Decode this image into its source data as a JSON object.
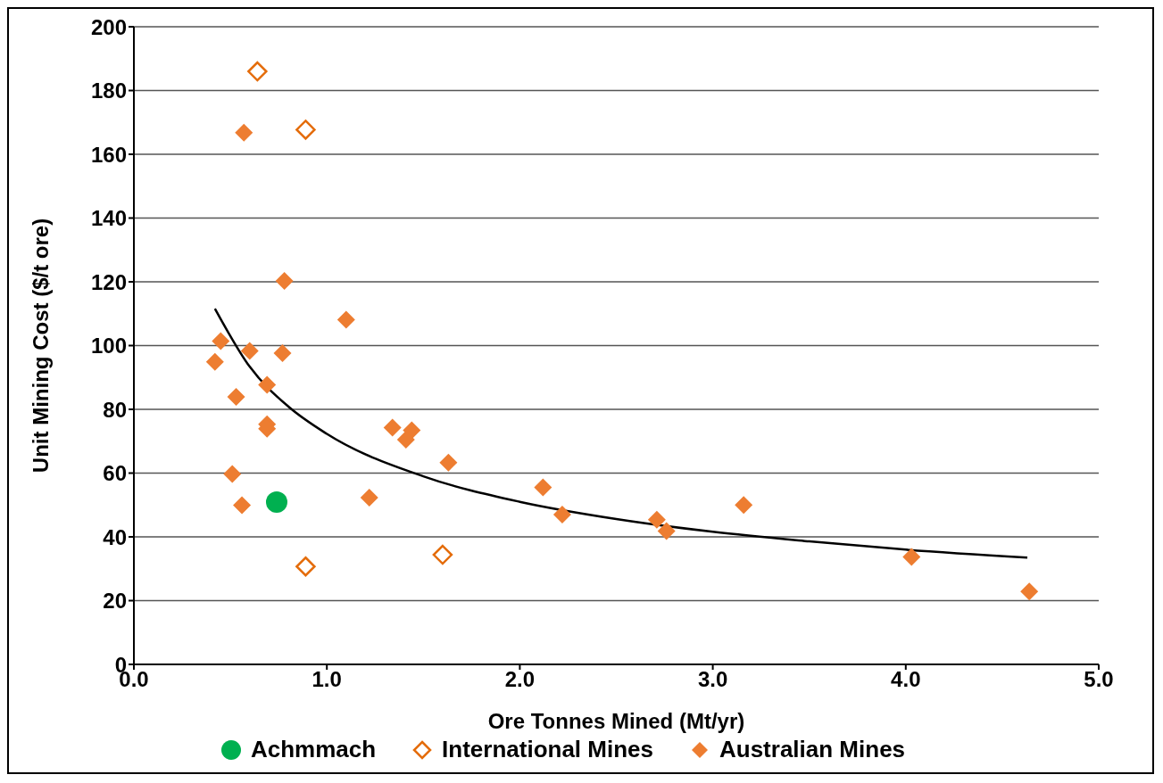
{
  "chart_data": {
    "type": "scatter",
    "xlabel": "Ore Tonnes Mined (Mt/yr)",
    "ylabel": "Unit Mining Cost ($/t ore)",
    "xlim": [
      0,
      5
    ],
    "xticks": [
      {
        "value": 0,
        "label": "0.0"
      },
      {
        "value": 1,
        "label": "1.0"
      },
      {
        "value": 2,
        "label": "2.0"
      },
      {
        "value": 3,
        "label": "3.0"
      },
      {
        "value": 4,
        "label": "4.0"
      },
      {
        "value": 5,
        "label": "5.0"
      }
    ],
    "ylim": [
      0,
      200
    ],
    "yticks": [
      0,
      20,
      40,
      60,
      80,
      100,
      120,
      140,
      160,
      180,
      200
    ],
    "grid": "y",
    "legend": "bottom",
    "series": [
      {
        "name": "Achmmach",
        "color": "#00b050",
        "marker": "circle",
        "x": [
          0.74
        ],
        "values": [
          50.9
        ]
      },
      {
        "name": "International Mines",
        "color": "#e46c0a",
        "marker": "diamond-open",
        "x": [
          0.64,
          0.89,
          0.89,
          1.6
        ],
        "values": [
          186,
          167.7,
          30.7,
          34.4
        ]
      },
      {
        "name": "Australian Mines",
        "color": "#ed7d31",
        "marker": "diamond",
        "x": [
          0.57,
          0.78,
          1.1,
          0.45,
          0.6,
          0.77,
          0.42,
          0.69,
          0.53,
          0.69,
          0.69,
          1.34,
          1.44,
          1.41,
          1.63,
          0.51,
          0.56,
          1.22,
          2.12,
          2.22,
          2.71,
          2.76,
          3.16,
          4.03,
          4.64
        ],
        "values": [
          166.8,
          120.3,
          108.1,
          101.4,
          98.3,
          97.6,
          94.9,
          87.7,
          83.9,
          75.3,
          73.9,
          74.3,
          73.4,
          70.5,
          63.3,
          59.7,
          49.9,
          52.3,
          55.5,
          47,
          45.4,
          41.8,
          50,
          33.7,
          22.9
        ]
      },
      {
        "type": "line",
        "color": "#000000",
        "marker": "none",
        "line_style": "solid",
        "x": [
          0.42,
          0.6,
          0.8,
          1.0,
          1.5,
          2.0,
          2.5,
          3.0,
          3.5,
          4.0,
          4.63
        ],
        "values": [
          111.6,
          93.4,
          80.9,
          72.3,
          59.0,
          51.0,
          45.6,
          41.6,
          38.6,
          36.0,
          33.5
        ]
      }
    ]
  }
}
